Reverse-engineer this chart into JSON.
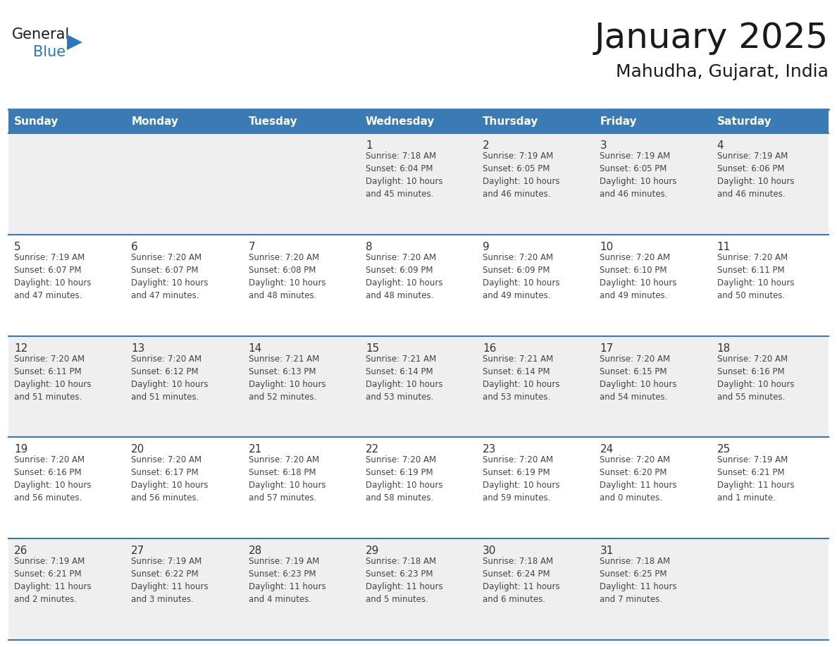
{
  "title": "January 2025",
  "subtitle": "Mahudha, Gujarat, India",
  "header_bg": "#3a7ab5",
  "header_text_color": "#ffffff",
  "days_of_week": [
    "Sunday",
    "Monday",
    "Tuesday",
    "Wednesday",
    "Thursday",
    "Friday",
    "Saturday"
  ],
  "row_bg_odd": "#efefef",
  "row_bg_even": "#ffffff",
  "cell_border_color": "#3a7ab5",
  "day_number_color": "#333333",
  "cell_text_color": "#444444",
  "logo_general_color": "#1a1a1a",
  "logo_blue_color": "#2878be",
  "calendar_data": [
    [
      null,
      null,
      null,
      {
        "day": "1",
        "sunrise": "7:18 AM",
        "sunset": "6:04 PM",
        "daylight_h": "10 hours",
        "daylight_m": "and 45 minutes."
      },
      {
        "day": "2",
        "sunrise": "7:19 AM",
        "sunset": "6:05 PM",
        "daylight_h": "10 hours",
        "daylight_m": "and 46 minutes."
      },
      {
        "day": "3",
        "sunrise": "7:19 AM",
        "sunset": "6:05 PM",
        "daylight_h": "10 hours",
        "daylight_m": "and 46 minutes."
      },
      {
        "day": "4",
        "sunrise": "7:19 AM",
        "sunset": "6:06 PM",
        "daylight_h": "10 hours",
        "daylight_m": "and 46 minutes."
      }
    ],
    [
      {
        "day": "5",
        "sunrise": "7:19 AM",
        "sunset": "6:07 PM",
        "daylight_h": "10 hours",
        "daylight_m": "and 47 minutes."
      },
      {
        "day": "6",
        "sunrise": "7:20 AM",
        "sunset": "6:07 PM",
        "daylight_h": "10 hours",
        "daylight_m": "and 47 minutes."
      },
      {
        "day": "7",
        "sunrise": "7:20 AM",
        "sunset": "6:08 PM",
        "daylight_h": "10 hours",
        "daylight_m": "and 48 minutes."
      },
      {
        "day": "8",
        "sunrise": "7:20 AM",
        "sunset": "6:09 PM",
        "daylight_h": "10 hours",
        "daylight_m": "and 48 minutes."
      },
      {
        "day": "9",
        "sunrise": "7:20 AM",
        "sunset": "6:09 PM",
        "daylight_h": "10 hours",
        "daylight_m": "and 49 minutes."
      },
      {
        "day": "10",
        "sunrise": "7:20 AM",
        "sunset": "6:10 PM",
        "daylight_h": "10 hours",
        "daylight_m": "and 49 minutes."
      },
      {
        "day": "11",
        "sunrise": "7:20 AM",
        "sunset": "6:11 PM",
        "daylight_h": "10 hours",
        "daylight_m": "and 50 minutes."
      }
    ],
    [
      {
        "day": "12",
        "sunrise": "7:20 AM",
        "sunset": "6:11 PM",
        "daylight_h": "10 hours",
        "daylight_m": "and 51 minutes."
      },
      {
        "day": "13",
        "sunrise": "7:20 AM",
        "sunset": "6:12 PM",
        "daylight_h": "10 hours",
        "daylight_m": "and 51 minutes."
      },
      {
        "day": "14",
        "sunrise": "7:21 AM",
        "sunset": "6:13 PM",
        "daylight_h": "10 hours",
        "daylight_m": "and 52 minutes."
      },
      {
        "day": "15",
        "sunrise": "7:21 AM",
        "sunset": "6:14 PM",
        "daylight_h": "10 hours",
        "daylight_m": "and 53 minutes."
      },
      {
        "day": "16",
        "sunrise": "7:21 AM",
        "sunset": "6:14 PM",
        "daylight_h": "10 hours",
        "daylight_m": "and 53 minutes."
      },
      {
        "day": "17",
        "sunrise": "7:20 AM",
        "sunset": "6:15 PM",
        "daylight_h": "10 hours",
        "daylight_m": "and 54 minutes."
      },
      {
        "day": "18",
        "sunrise": "7:20 AM",
        "sunset": "6:16 PM",
        "daylight_h": "10 hours",
        "daylight_m": "and 55 minutes."
      }
    ],
    [
      {
        "day": "19",
        "sunrise": "7:20 AM",
        "sunset": "6:16 PM",
        "daylight_h": "10 hours",
        "daylight_m": "and 56 minutes."
      },
      {
        "day": "20",
        "sunrise": "7:20 AM",
        "sunset": "6:17 PM",
        "daylight_h": "10 hours",
        "daylight_m": "and 56 minutes."
      },
      {
        "day": "21",
        "sunrise": "7:20 AM",
        "sunset": "6:18 PM",
        "daylight_h": "10 hours",
        "daylight_m": "and 57 minutes."
      },
      {
        "day": "22",
        "sunrise": "7:20 AM",
        "sunset": "6:19 PM",
        "daylight_h": "10 hours",
        "daylight_m": "and 58 minutes."
      },
      {
        "day": "23",
        "sunrise": "7:20 AM",
        "sunset": "6:19 PM",
        "daylight_h": "10 hours",
        "daylight_m": "and 59 minutes."
      },
      {
        "day": "24",
        "sunrise": "7:20 AM",
        "sunset": "6:20 PM",
        "daylight_h": "11 hours",
        "daylight_m": "and 0 minutes."
      },
      {
        "day": "25",
        "sunrise": "7:19 AM",
        "sunset": "6:21 PM",
        "daylight_h": "11 hours",
        "daylight_m": "and 1 minute."
      }
    ],
    [
      {
        "day": "26",
        "sunrise": "7:19 AM",
        "sunset": "6:21 PM",
        "daylight_h": "11 hours",
        "daylight_m": "and 2 minutes."
      },
      {
        "day": "27",
        "sunrise": "7:19 AM",
        "sunset": "6:22 PM",
        "daylight_h": "11 hours",
        "daylight_m": "and 3 minutes."
      },
      {
        "day": "28",
        "sunrise": "7:19 AM",
        "sunset": "6:23 PM",
        "daylight_h": "11 hours",
        "daylight_m": "and 4 minutes."
      },
      {
        "day": "29",
        "sunrise": "7:18 AM",
        "sunset": "6:23 PM",
        "daylight_h": "11 hours",
        "daylight_m": "and 5 minutes."
      },
      {
        "day": "30",
        "sunrise": "7:18 AM",
        "sunset": "6:24 PM",
        "daylight_h": "11 hours",
        "daylight_m": "and 6 minutes."
      },
      {
        "day": "31",
        "sunrise": "7:18 AM",
        "sunset": "6:25 PM",
        "daylight_h": "11 hours",
        "daylight_m": "and 7 minutes."
      },
      null
    ]
  ],
  "fig_width": 11.88,
  "fig_height": 9.18,
  "dpi": 100
}
